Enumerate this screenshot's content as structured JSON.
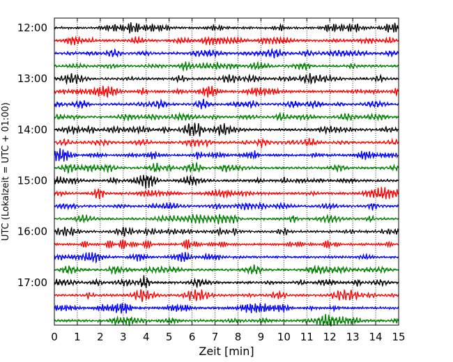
{
  "chart_data": {
    "type": "line",
    "title": "",
    "xlabel": "Zeit  [min]",
    "ylabel": "UTC (Lokalzeit = UTC + 01:00)",
    "xlim": [
      0,
      15
    ],
    "x_ticks": [
      0,
      1,
      2,
      3,
      4,
      5,
      6,
      7,
      8,
      9,
      10,
      11,
      12,
      13,
      14,
      15
    ],
    "y_time_range": [
      "12:00",
      "18:00"
    ],
    "y_tick_labels": [
      "12:00",
      "13:00",
      "14:00",
      "15:00",
      "16:00",
      "17:00"
    ],
    "trace_interval_min": 15,
    "trace_count": 24,
    "trace_start_times": [
      "12:00",
      "12:15",
      "12:30",
      "12:45",
      "13:00",
      "13:15",
      "13:30",
      "13:45",
      "14:00",
      "14:15",
      "14:30",
      "14:45",
      "15:00",
      "15:15",
      "15:30",
      "15:45",
      "16:00",
      "16:15",
      "16:30",
      "16:45",
      "17:00",
      "17:15",
      "17:30",
      "17:45"
    ],
    "color_cycle": [
      "#000000",
      "#ff0000",
      "#0000ff",
      "#008000"
    ],
    "vertical_grid": "dotted",
    "series": []
  }
}
